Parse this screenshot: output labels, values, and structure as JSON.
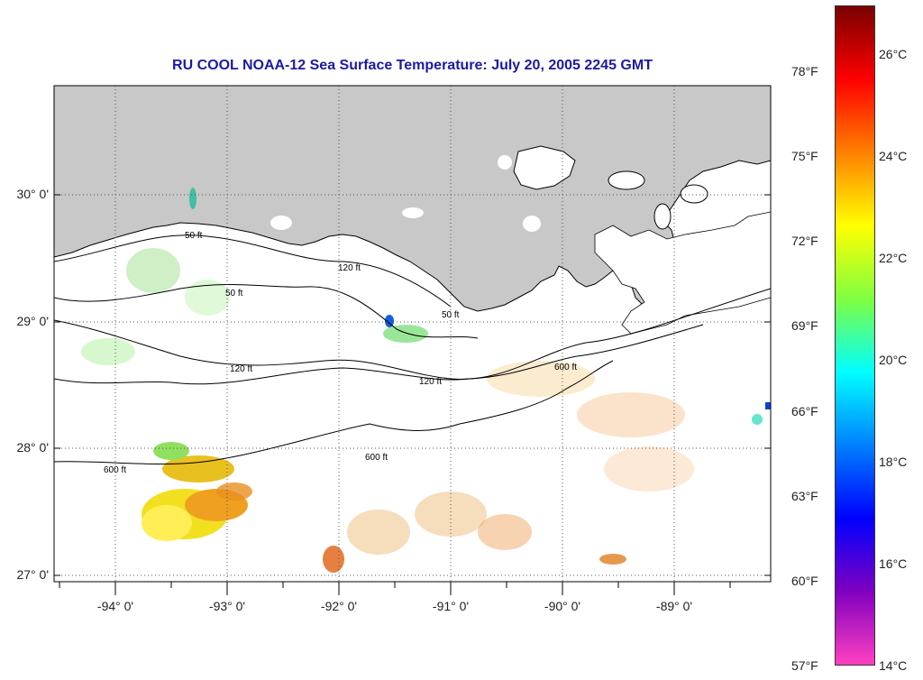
{
  "title": "RU COOL  NOAA-12  Sea Surface Temperature:  July 20, 2005 2245 GMT",
  "colors": {
    "title": "#1a1aa6",
    "land": "#c8c8c8",
    "contour": "#000000"
  },
  "latitude_labels": [
    "30° 0'",
    "29° 0'",
    "28° 0'",
    "27° 0'"
  ],
  "longitude_labels": [
    "-94° 0'",
    "-93° 0'",
    "-92° 0'",
    "-91° 0'",
    "-90° 0'",
    "-89° 0'"
  ],
  "depth_contour_labels": [
    "50 ft",
    "120 ft",
    "600 ft"
  ],
  "colorbar": {
    "fahrenheit_labels": [
      "78°F",
      "75°F",
      "72°F",
      "69°F",
      "66°F",
      "63°F",
      "60°F",
      "57°F"
    ],
    "celsius_labels": [
      "26°C",
      "24°C",
      "22°C",
      "20°C",
      "18°C",
      "16°C",
      "14°C"
    ],
    "range_f": [
      57,
      80
    ],
    "colors_top_to_bottom": [
      "#7a0000",
      "#ff0000",
      "#ff8000",
      "#ffff00",
      "#80ff40",
      "#00ffff",
      "#0080ff",
      "#0000ff",
      "#8000c0",
      "#ff40c0"
    ]
  }
}
